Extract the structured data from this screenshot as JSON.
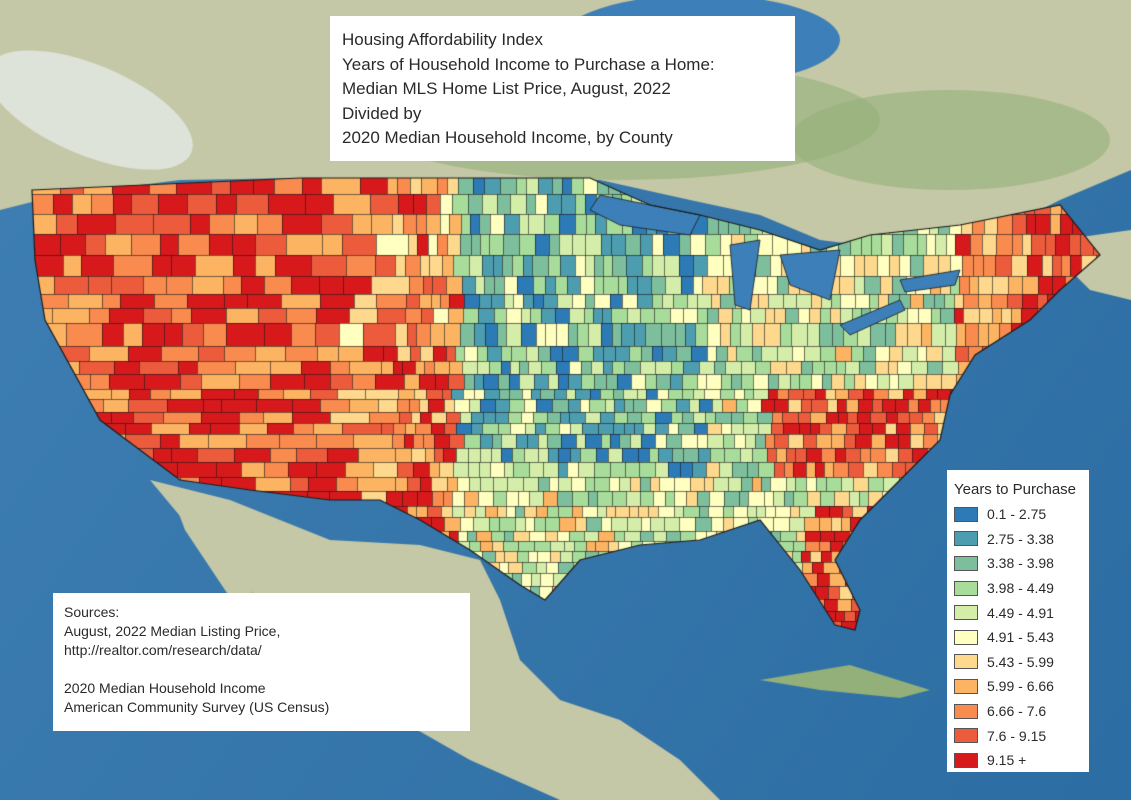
{
  "title_lines": [
    "Housing Affordability Index",
    "Years of Household Income to Purchase a Home:",
    "Median MLS Home List Price, August, 2022",
    "Divided by",
    "2020 Median Household Income, by County"
  ],
  "sources_lines": [
    "Sources:",
    "August, 2022 Median Listing Price,",
    "http://realtor.com/research/data/",
    "",
    "2020 Median Household Income",
    "American Community Survey (US Census)"
  ],
  "legend": {
    "title": "Years to Purchase",
    "classes": [
      {
        "label": "0.1 - 2.75",
        "color": "#2c7bb6"
      },
      {
        "label": "2.75 - 3.38",
        "color": "#4d9db0"
      },
      {
        "label": "3.38 - 3.98",
        "color": "#7dbf9d"
      },
      {
        "label": "3.98 - 4.49",
        "color": "#a8dc9a"
      },
      {
        "label": "4.49 - 4.91",
        "color": "#d4eeaa"
      },
      {
        "label": "4.91 - 5.43",
        "color": "#ffffbf"
      },
      {
        "label": "5.43 - 5.99",
        "color": "#fed88c"
      },
      {
        "label": "5.99 - 6.66",
        "color": "#fdb462"
      },
      {
        "label": "6.66 - 7.6",
        "color": "#f98b4e"
      },
      {
        "label": "7.6 - 9.15",
        "color": "#ec5b3c"
      },
      {
        "label": "9.15 +",
        "color": "#d7191c"
      }
    ]
  },
  "colors": {
    "ocean": "#3f7fb3",
    "ocean_deep": "#2c6da3",
    "land": "#c5c8a6",
    "land_green": "#93b07a",
    "ice": "#e8eef0",
    "lake": "#3d7fb8",
    "county_outline": "#1a1a1a"
  }
}
